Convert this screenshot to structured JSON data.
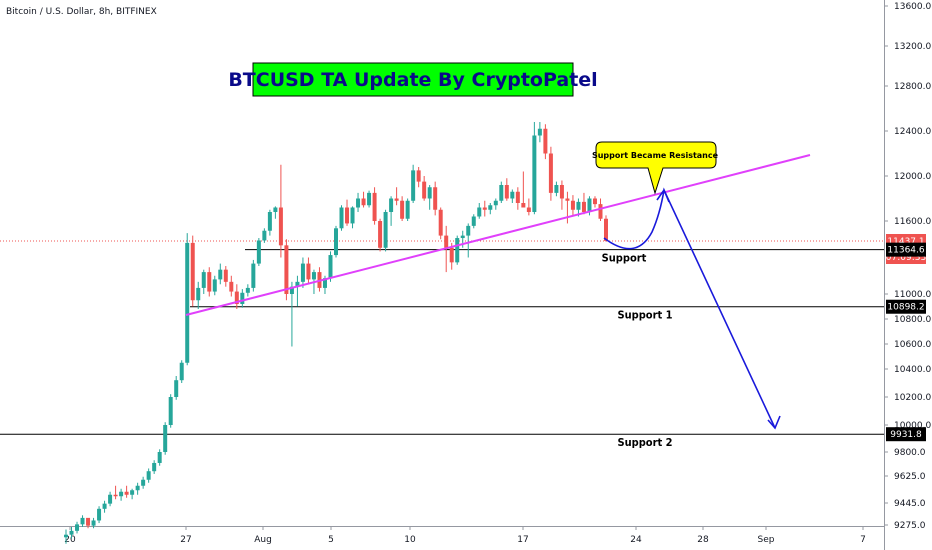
{
  "chart_data": {
    "type": "candlestick",
    "legend": "Bitcoin / U.S. Dollar, 8h, BITFINEX",
    "title": "BTCUSD TA Update By CryptoPatel",
    "callout": "Support Became Resistance",
    "y_ticks": [
      "13600.0",
      "13200.0",
      "12800.0",
      "12400.0",
      "12000.0",
      "11600.0",
      "11000.0",
      "10800.0",
      "10600.0",
      "10400.0",
      "10200.0",
      "10000.0",
      "9800.0",
      "9625.0",
      "9445.0",
      "9275.0"
    ],
    "y_tick_values": [
      13600,
      13200,
      12800,
      12400,
      12000,
      11600,
      11000,
      10800,
      10600,
      10400,
      10200,
      10000,
      9800,
      9625,
      9445,
      9275
    ],
    "x_ticks": [
      "20",
      "27",
      "Aug",
      "5",
      "10",
      "17",
      "24",
      "28",
      "Sep",
      "7"
    ],
    "supports": [
      {
        "label": "Support",
        "value": 11364.6,
        "tag": "11364.6"
      },
      {
        "label": "Support 1",
        "value": 10898.2,
        "tag": "10898.2"
      },
      {
        "label": "Support 2",
        "value": 9931.8,
        "tag": "9931.8"
      }
    ],
    "price_tag": "11437.1",
    "time_tag": "07:09:33",
    "colors": {
      "up": "#26a69a",
      "down": "#ef5350",
      "trend": "#e040fb",
      "projection": "#1a1adb",
      "title_bg": "#00ff00",
      "callout_bg": "#ffff00",
      "price_red": "#ef5350",
      "tag_black": "#000000"
    },
    "candles": [
      [
        9180,
        9240,
        9130,
        9200
      ],
      [
        9200,
        9260,
        9170,
        9230
      ],
      [
        9230,
        9300,
        9210,
        9280
      ],
      [
        9280,
        9350,
        9260,
        9330
      ],
      [
        9330,
        9310,
        9250,
        9270
      ],
      [
        9270,
        9330,
        9250,
        9310
      ],
      [
        9310,
        9420,
        9290,
        9400
      ],
      [
        9400,
        9460,
        9370,
        9440
      ],
      [
        9440,
        9520,
        9420,
        9500
      ],
      [
        9500,
        9560,
        9470,
        9490
      ],
      [
        9490,
        9540,
        9460,
        9520
      ],
      [
        9520,
        9560,
        9480,
        9500
      ],
      [
        9500,
        9540,
        9470,
        9530
      ],
      [
        9530,
        9580,
        9500,
        9560
      ],
      [
        9560,
        9620,
        9540,
        9600
      ],
      [
        9600,
        9680,
        9580,
        9660
      ],
      [
        9660,
        9740,
        9640,
        9720
      ],
      [
        9720,
        9820,
        9700,
        9800
      ],
      [
        9800,
        10020,
        9780,
        10000
      ],
      [
        10000,
        10220,
        9980,
        10200
      ],
      [
        10200,
        10350,
        10180,
        10320
      ],
      [
        10320,
        10470,
        10300,
        10450
      ],
      [
        10450,
        11500,
        10430,
        11420
      ],
      [
        11420,
        11480,
        10900,
        10950
      ],
      [
        10950,
        11100,
        10880,
        11050
      ],
      [
        11050,
        11200,
        11000,
        11180
      ],
      [
        11180,
        11220,
        10980,
        11020
      ],
      [
        11020,
        11150,
        10990,
        11120
      ],
      [
        11120,
        11250,
        11080,
        11200
      ],
      [
        11200,
        11230,
        11060,
        11100
      ],
      [
        11100,
        11150,
        10980,
        11020
      ],
      [
        11020,
        11080,
        10880,
        10920
      ],
      [
        10920,
        11040,
        10890,
        11010
      ],
      [
        11010,
        11080,
        10980,
        11050
      ],
      [
        11050,
        11280,
        11020,
        11250
      ],
      [
        11250,
        11460,
        11230,
        11440
      ],
      [
        11440,
        11540,
        11420,
        11520
      ],
      [
        11520,
        11700,
        11480,
        11680
      ],
      [
        11680,
        11730,
        11620,
        11720
      ],
      [
        11720,
        12100,
        11300,
        11400
      ],
      [
        11400,
        11450,
        10950,
        11000
      ],
      [
        11000,
        11100,
        10580,
        11060
      ],
      [
        11060,
        11150,
        10900,
        11100
      ],
      [
        11100,
        11300,
        11050,
        11250
      ],
      [
        11250,
        11300,
        11080,
        11120
      ],
      [
        11120,
        11200,
        11000,
        11180
      ],
      [
        11180,
        11220,
        11020,
        11050
      ],
      [
        11050,
        11150,
        11000,
        11130
      ],
      [
        11130,
        11350,
        11100,
        11320
      ],
      [
        11320,
        11560,
        11300,
        11540
      ],
      [
        11540,
        11740,
        11520,
        11720
      ],
      [
        11720,
        11790,
        11560,
        11580
      ],
      [
        11580,
        11730,
        11540,
        11720
      ],
      [
        11720,
        11850,
        11680,
        11800
      ],
      [
        11800,
        11860,
        11720,
        11740
      ],
      [
        11740,
        11870,
        11720,
        11850
      ],
      [
        11850,
        11900,
        11570,
        11600
      ],
      [
        11600,
        11620,
        11350,
        11380
      ],
      [
        11380,
        11700,
        11350,
        11680
      ],
      [
        11680,
        11820,
        11560,
        11800
      ],
      [
        11800,
        11900,
        11740,
        11780
      ],
      [
        11780,
        11820,
        11600,
        11620
      ],
      [
        11620,
        11800,
        11600,
        11780
      ],
      [
        11780,
        12100,
        11760,
        12050
      ],
      [
        12050,
        12080,
        11900,
        11950
      ],
      [
        11950,
        12000,
        11780,
        11800
      ],
      [
        11800,
        11920,
        11700,
        11900
      ],
      [
        11900,
        11950,
        11650,
        11700
      ],
      [
        11700,
        11720,
        11450,
        11480
      ],
      [
        11480,
        11560,
        11180,
        11380
      ],
      [
        11380,
        11420,
        11200,
        11260
      ],
      [
        11260,
        11480,
        11240,
        11460
      ],
      [
        11460,
        11520,
        11380,
        11480
      ],
      [
        11480,
        11580,
        11300,
        11560
      ],
      [
        11560,
        11660,
        11540,
        11640
      ],
      [
        11640,
        11760,
        11620,
        11720
      ],
      [
        11720,
        11780,
        11640,
        11700
      ],
      [
        11700,
        11760,
        11660,
        11740
      ],
      [
        11740,
        11800,
        11700,
        11780
      ],
      [
        11780,
        11950,
        11760,
        11920
      ],
      [
        11920,
        11980,
        11780,
        11800
      ],
      [
        11800,
        11880,
        11760,
        11860
      ],
      [
        11860,
        11900,
        11700,
        11760
      ],
      [
        11760,
        12040,
        11740,
        11720
      ],
      [
        11720,
        11800,
        11650,
        11680
      ],
      [
        11680,
        12480,
        11660,
        12360
      ],
      [
        12360,
        12480,
        12300,
        12420
      ],
      [
        12420,
        12460,
        12150,
        12200
      ],
      [
        12200,
        12260,
        11780,
        11850
      ],
      [
        11850,
        11950,
        11820,
        11920
      ],
      [
        11920,
        11960,
        11700,
        11800
      ],
      [
        11800,
        11860,
        11580,
        11780
      ],
      [
        11780,
        11830,
        11650,
        11700
      ],
      [
        11700,
        11800,
        11640,
        11770
      ],
      [
        11770,
        11850,
        11660,
        11680
      ],
      [
        11680,
        11820,
        11650,
        11800
      ],
      [
        11800,
        11820,
        11720,
        11750
      ],
      [
        11750,
        11800,
        11600,
        11620
      ],
      [
        11620,
        11650,
        11430,
        11437
      ]
    ],
    "trendline": {
      "start": [
        0,
        10860
      ],
      "end": [
        1,
        12200
      ]
    }
  }
}
